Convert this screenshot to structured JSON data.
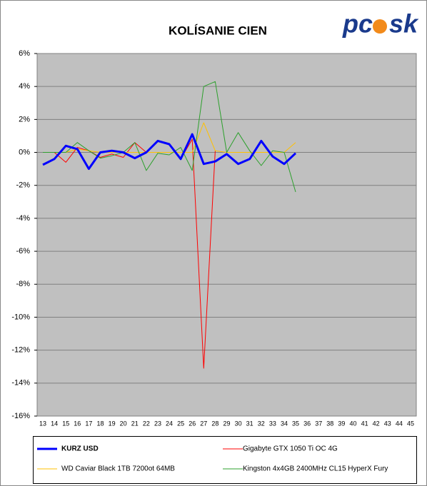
{
  "chart_data": {
    "type": "line",
    "title": "KOLÍSANIE CIEN",
    "logo": [
      "pc",
      "sk"
    ],
    "categories": [
      "13",
      "14",
      "15",
      "16",
      "17",
      "18",
      "19",
      "20",
      "21",
      "22",
      "23",
      "24",
      "25",
      "26",
      "27",
      "28",
      "29",
      "30",
      "31",
      "32",
      "33",
      "34",
      "35",
      "36",
      "37",
      "38",
      "39",
      "40",
      "41",
      "42",
      "43",
      "44",
      "45"
    ],
    "series": [
      {
        "name": "KURZ USD",
        "color": "#0000ff",
        "values": [
          -0.75,
          -0.4,
          0.4,
          0.2,
          -1.0,
          0.0,
          0.1,
          0.0,
          -0.35,
          0.0,
          0.7,
          0.5,
          -0.4,
          1.1,
          -0.7,
          -0.55,
          -0.1,
          -0.7,
          -0.4,
          0.7,
          -0.25,
          -0.7,
          -0.05,
          null,
          null,
          null,
          null,
          null,
          null,
          null,
          null,
          null,
          null
        ]
      },
      {
        "name": "Gigabyte GTX 1050 Ti OC 4G",
        "color": "#ff0000",
        "values": [
          null,
          0.0,
          -0.6,
          0.3,
          0.1,
          -0.3,
          -0.1,
          -0.3,
          0.6,
          0.0,
          0.7,
          0.5,
          -0.4,
          0.8,
          -13.1,
          0.1,
          null,
          null,
          null,
          null,
          null,
          null,
          null,
          null,
          null,
          null,
          null,
          null,
          null,
          null,
          null,
          null,
          null
        ]
      },
      {
        "name": "WD Caviar Black 1TB 7200ot 64MB",
        "color": "#ffc000",
        "values": [
          0.0,
          0.0,
          0.0,
          0.2,
          0.1,
          0.0,
          0.0,
          0.0,
          0.0,
          0.0,
          0.0,
          0.0,
          0.0,
          0.0,
          1.8,
          0.1,
          0.0,
          0.0,
          0.0,
          0.0,
          0.0,
          0.0,
          0.6,
          null,
          null,
          null,
          null,
          null,
          null,
          null,
          null,
          null,
          null
        ]
      },
      {
        "name": "Kingston 4x4GB 2400MHz CL15 HyperX Fury",
        "color": "#2ca02c",
        "values": [
          0.0,
          0.0,
          0.0,
          0.6,
          0.1,
          -0.35,
          -0.2,
          0.0,
          0.6,
          -1.1,
          -0.05,
          -0.15,
          0.3,
          -1.1,
          4.0,
          4.3,
          0.0,
          1.2,
          0.1,
          -0.8,
          0.1,
          0.0,
          -2.4,
          null,
          null,
          null,
          null,
          null,
          null,
          null,
          null,
          null,
          null
        ]
      }
    ],
    "ylim": [
      -16,
      6
    ],
    "yticks": [
      {
        "value": -16,
        "label": "-16%"
      },
      {
        "value": -14,
        "label": "-14%"
      },
      {
        "value": -12,
        "label": "-12%"
      },
      {
        "value": -10,
        "label": "-10%"
      },
      {
        "value": -8,
        "label": "-8%"
      },
      {
        "value": -6,
        "label": "-6%"
      },
      {
        "value": -4,
        "label": "-4%"
      },
      {
        "value": -2,
        "label": "-2%"
      },
      {
        "value": 0,
        "label": "0%"
      },
      {
        "value": 2,
        "label": "2%"
      },
      {
        "value": 4,
        "label": "4%"
      },
      {
        "value": 6,
        "label": "6%"
      }
    ],
    "grid": true,
    "legend": "bottom"
  }
}
